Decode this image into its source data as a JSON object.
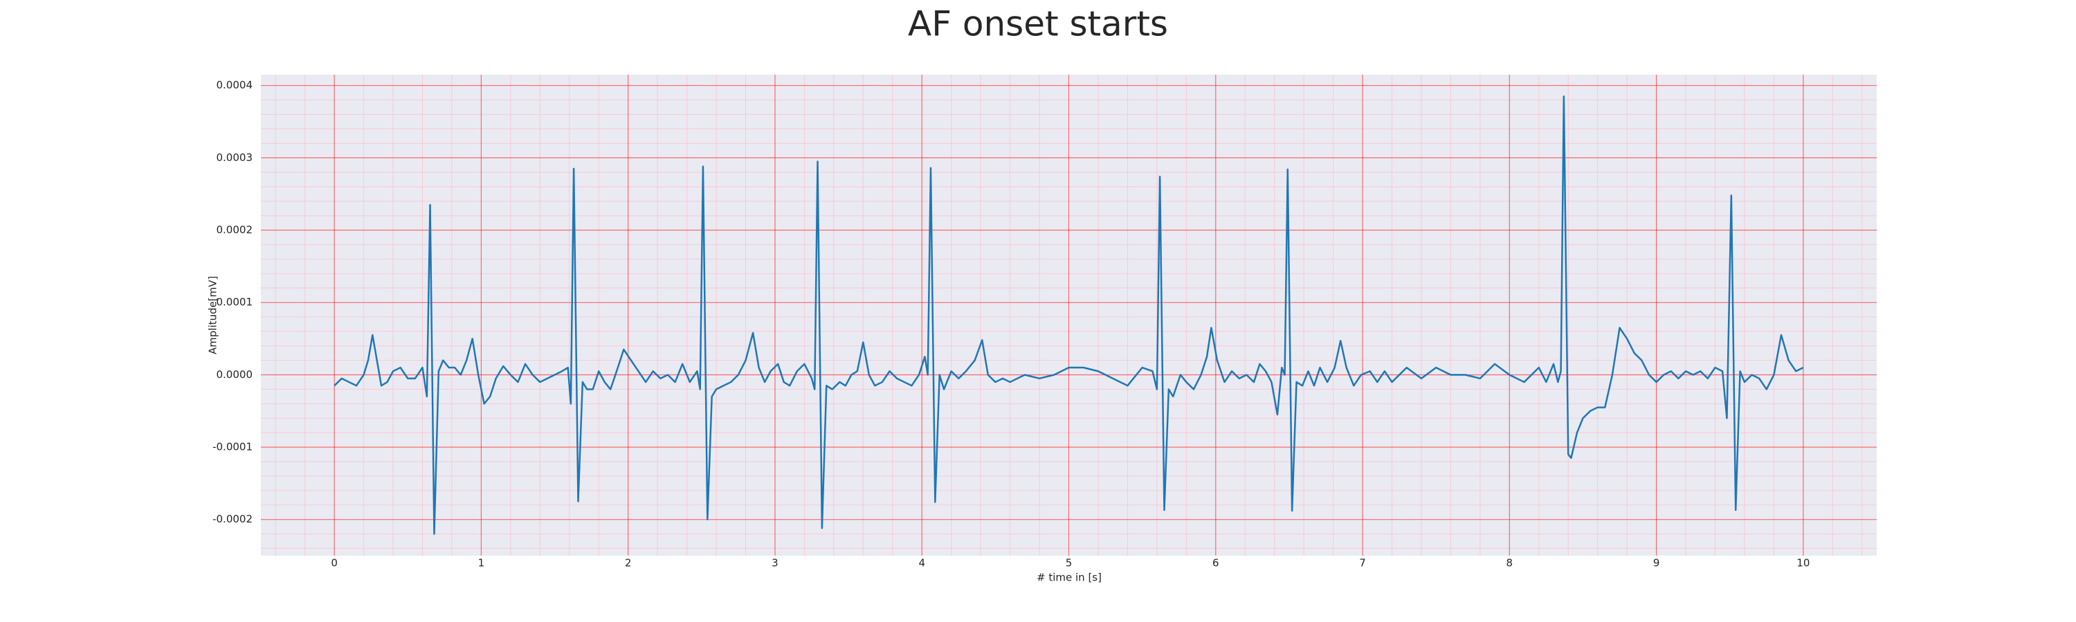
{
  "chart_data": {
    "type": "line",
    "title": "AF onset starts",
    "xlabel": "# time in [s]",
    "ylabel": "Amplitude[mV]",
    "color": "#1f77b4",
    "grid": true,
    "minor_grid": true,
    "xlim": [
      -0.5,
      10.5
    ],
    "ylim": [
      -0.00025,
      0.000415
    ],
    "xticks": [
      0,
      1,
      2,
      3,
      4,
      5,
      6,
      7,
      8,
      9,
      10
    ],
    "yticks": [
      -0.0002,
      -0.0001,
      {
        "value": 0,
        "label": "0.0000"
      },
      0.0001,
      0.0002,
      0.0003,
      0.0004
    ],
    "x": [
      0,
      0.05,
      0.1,
      0.15,
      0.2,
      0.23,
      0.26,
      0.29,
      0.32,
      0.36,
      0.4,
      0.45,
      0.5,
      0.55,
      0.6,
      0.63,
      0.652,
      0.68,
      0.71,
      0.74,
      0.78,
      0.82,
      0.86,
      0.9,
      0.94,
      0.98,
      1.02,
      1.06,
      1.1,
      1.15,
      1.2,
      1.25,
      1.3,
      1.35,
      1.4,
      1.45,
      1.5,
      1.55,
      1.59,
      1.61,
      1.63,
      1.66,
      1.69,
      1.72,
      1.76,
      1.8,
      1.84,
      1.88,
      1.93,
      1.97,
      2.02,
      2.07,
      2.12,
      2.17,
      2.22,
      2.27,
      2.32,
      2.37,
      2.42,
      2.47,
      2.49,
      2.51,
      2.54,
      2.57,
      2.6,
      2.65,
      2.7,
      2.75,
      2.8,
      2.85,
      2.89,
      2.93,
      2.97,
      3.02,
      3.06,
      3.1,
      3.15,
      3.2,
      3.25,
      3.27,
      3.29,
      3.32,
      3.35,
      3.39,
      3.44,
      3.48,
      3.52,
      3.56,
      3.6,
      3.64,
      3.68,
      3.73,
      3.78,
      3.83,
      3.88,
      3.93,
      3.98,
      4.02,
      4.04,
      4.06,
      4.09,
      4.12,
      4.15,
      4.2,
      4.25,
      4.3,
      4.36,
      4.41,
      4.45,
      4.5,
      4.55,
      4.6,
      4.7,
      4.8,
      4.9,
      5.0,
      5.1,
      5.2,
      5.3,
      5.4,
      5.5,
      5.57,
      5.6,
      5.62,
      5.65,
      5.68,
      5.71,
      5.76,
      5.8,
      5.85,
      5.9,
      5.94,
      5.97,
      6.01,
      6.06,
      6.11,
      6.16,
      6.21,
      6.26,
      6.3,
      6.34,
      6.38,
      6.42,
      6.45,
      6.47,
      6.49,
      6.52,
      6.55,
      6.59,
      6.63,
      6.67,
      6.71,
      6.76,
      6.81,
      6.85,
      6.89,
      6.94,
      6.99,
      7.05,
      7.1,
      7.15,
      7.2,
      7.3,
      7.4,
      7.5,
      7.6,
      7.7,
      7.8,
      7.9,
      8.0,
      8.1,
      8.2,
      8.25,
      8.3,
      8.33,
      8.35,
      8.37,
      8.4,
      8.42,
      8.46,
      8.5,
      8.55,
      8.6,
      8.65,
      8.7,
      8.75,
      8.8,
      8.85,
      8.9,
      8.95,
      9.0,
      9.05,
      9.1,
      9.15,
      9.2,
      9.25,
      9.3,
      9.35,
      9.4,
      9.45,
      9.48,
      9.51,
      9.54,
      9.57,
      9.6,
      9.65,
      9.7,
      9.75,
      9.8,
      9.85,
      9.9,
      9.95,
      10.0
    ],
    "values": [
      -1.5e-05,
      -5e-06,
      -1e-05,
      -1.5e-05,
      0.0,
      2e-05,
      5.5e-05,
      2e-05,
      -1.5e-05,
      -1e-05,
      5e-06,
      1e-05,
      -5e-06,
      -5e-06,
      1e-05,
      -3e-05,
      0.000235,
      -0.00022,
      5e-06,
      2e-05,
      1e-05,
      1e-05,
      0.0,
      2e-05,
      5e-05,
      0.0,
      -4e-05,
      -3e-05,
      -5e-06,
      1.2e-05,
      0.0,
      -1e-05,
      1.5e-05,
      0.0,
      -1e-05,
      -5e-06,
      0.0,
      5e-06,
      1e-05,
      -4e-05,
      0.000285,
      -0.000175,
      -1e-05,
      -2e-05,
      -2e-05,
      5e-06,
      -1e-05,
      -2e-05,
      1e-05,
      3.5e-05,
      2e-05,
      5e-06,
      -1e-05,
      5e-06,
      -5e-06,
      0.0,
      -1e-05,
      1.5e-05,
      -1e-05,
      5e-06,
      -2e-05,
      0.000288,
      -0.0002,
      -3e-05,
      -2e-05,
      -1.5e-05,
      -1e-05,
      0.0,
      2e-05,
      5.8e-05,
      1e-05,
      -1e-05,
      5e-06,
      1.5e-05,
      -1e-05,
      -1.5e-05,
      5e-06,
      1.5e-05,
      -5e-06,
      -2e-05,
      0.000295,
      -0.000212,
      -1.5e-05,
      -2e-05,
      -1e-05,
      -1.5e-05,
      0.0,
      5e-06,
      4.5e-05,
      0.0,
      -1.5e-05,
      -1e-05,
      5e-06,
      -5e-06,
      -1e-05,
      -1.5e-05,
      0.0,
      2.5e-05,
      0.0,
      0.000286,
      -0.000176,
      0.0,
      -2e-05,
      5e-06,
      -5e-06,
      5e-06,
      2e-05,
      4.8e-05,
      0.0,
      -1e-05,
      -5e-06,
      -1e-05,
      0.0,
      -5e-06,
      0.0,
      1e-05,
      1e-05,
      5e-06,
      -5e-06,
      -1.5e-05,
      1e-05,
      5e-06,
      -2e-05,
      0.000274,
      -0.000187,
      -2e-05,
      -3e-05,
      0.0,
      -1e-05,
      -2e-05,
      0.0,
      2.5e-05,
      6.5e-05,
      2e-05,
      -1e-05,
      5e-06,
      -5e-06,
      0.0,
      -1e-05,
      1.5e-05,
      5e-06,
      -1e-05,
      -5.5e-05,
      1e-05,
      0.0,
      0.000284,
      -0.000188,
      -1e-05,
      -1.5e-05,
      5e-06,
      -1.5e-05,
      1e-05,
      -1e-05,
      1e-05,
      4.7e-05,
      1e-05,
      -1.5e-05,
      0.0,
      5e-06,
      -1e-05,
      5e-06,
      -1e-05,
      1e-05,
      -5e-06,
      1e-05,
      0.0,
      0.0,
      -5e-06,
      1.5e-05,
      0.0,
      -1e-05,
      1e-05,
      -1e-05,
      1.5e-05,
      -1e-05,
      5e-06,
      0.000385,
      -0.00011,
      -0.000115,
      -8e-05,
      -6e-05,
      -5e-05,
      -4.5e-05,
      -4.5e-05,
      0.0,
      6.5e-05,
      5e-05,
      3e-05,
      2e-05,
      0.0,
      -1e-05,
      0.0,
      5e-06,
      -5e-06,
      5e-06,
      0.0,
      5e-06,
      -5e-06,
      1e-05,
      5e-06,
      -6e-05,
      0.000248,
      -0.000187,
      5e-06,
      -1e-05,
      0.0,
      -5e-06,
      -2e-05,
      0.0,
      5.5e-05,
      2e-05,
      5e-06,
      1e-05
    ]
  }
}
